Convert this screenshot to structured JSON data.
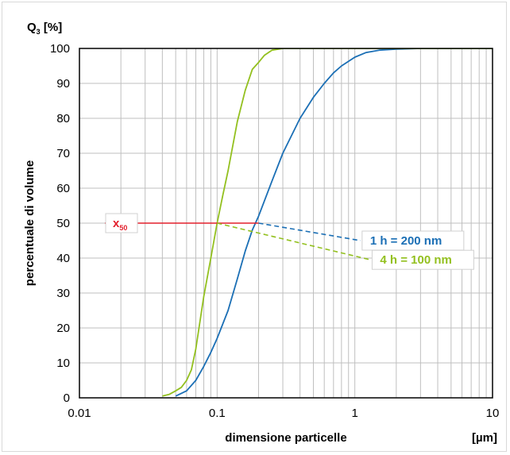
{
  "chart_data": {
    "type": "line",
    "ylabel_prefix": "Q",
    "ylabel_sub": "3",
    "ylabel_unit": "[%]",
    "ylabel": "percentuale di volume",
    "xlabel": "dimensione particelle",
    "xunit": "[µm]",
    "x_scale": "log",
    "xlim": [
      0.01,
      10
    ],
    "ylim": [
      0,
      100
    ],
    "x_ticks": [
      "0.01",
      "0.1",
      "1",
      "10"
    ],
    "y_ticks": [
      "0",
      "10",
      "20",
      "30",
      "40",
      "50",
      "60",
      "70",
      "80",
      "90",
      "100"
    ],
    "grid": true,
    "series": [
      {
        "name": "1 h = 200 nm",
        "color": "#1b6fb5",
        "x": [
          0.05,
          0.06,
          0.07,
          0.08,
          0.09,
          0.1,
          0.12,
          0.14,
          0.16,
          0.18,
          0.2,
          0.25,
          0.3,
          0.4,
          0.5,
          0.6,
          0.7,
          0.8,
          1.0,
          1.2,
          1.5,
          2,
          3,
          5,
          10
        ],
        "y": [
          0.5,
          2,
          5,
          9,
          13,
          17,
          25,
          34,
          42,
          48,
          52,
          62,
          70,
          80,
          86,
          90,
          93,
          95,
          97.5,
          98.8,
          99.5,
          99.8,
          100,
          100,
          100
        ]
      },
      {
        "name": "4 h = 100 nm",
        "color": "#93c01f",
        "x": [
          0.04,
          0.045,
          0.05,
          0.055,
          0.06,
          0.065,
          0.07,
          0.08,
          0.09,
          0.1,
          0.11,
          0.12,
          0.14,
          0.16,
          0.18,
          0.2,
          0.22,
          0.25,
          0.3,
          0.35,
          0.4,
          0.5,
          1,
          10
        ],
        "y": [
          0.5,
          1,
          2,
          3,
          5,
          8,
          14,
          29,
          40,
          50,
          58,
          65,
          79,
          88,
          94,
          96,
          98,
          99.5,
          100,
          100,
          100,
          100,
          100,
          100
        ]
      }
    ],
    "x50_line": {
      "y": 50,
      "color": "#e3202d",
      "label": "x",
      "label_sub": "50"
    },
    "annotations": [
      {
        "from_x": 0.2,
        "from_y": 50,
        "to_x": 1.1,
        "to_y": 45,
        "text": "1 h = 200 nm",
        "color": "#1b6fb5",
        "style": "dashed"
      },
      {
        "from_x": 0.1,
        "from_y": 50,
        "to_x": 1.3,
        "to_y": 39.5,
        "text": "4 h = 100 nm",
        "color": "#93c01f",
        "style": "dashed"
      }
    ]
  }
}
